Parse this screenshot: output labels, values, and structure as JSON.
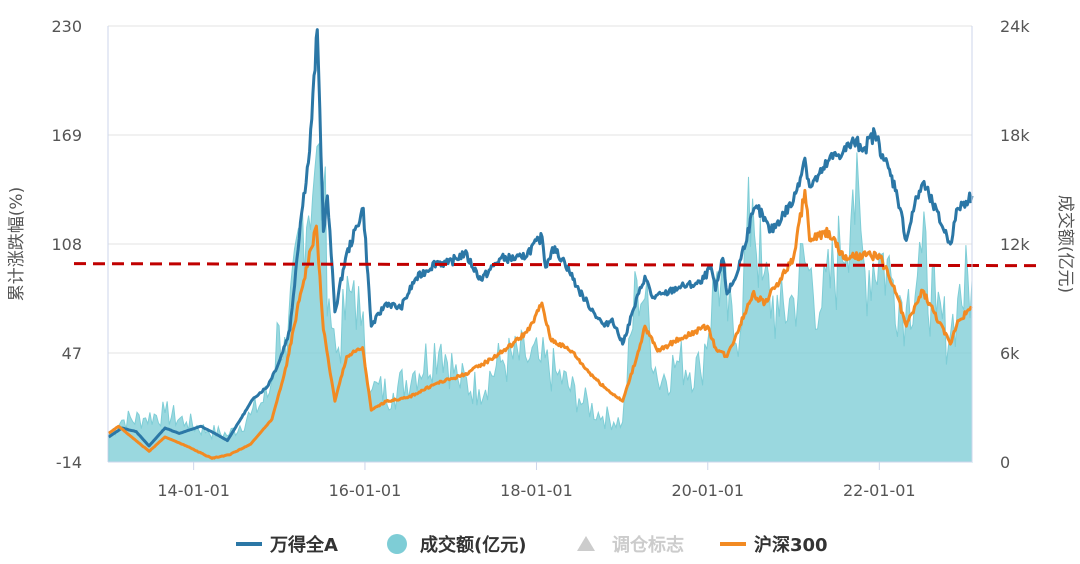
{
  "chart_data": {
    "type": "line",
    "title": "",
    "y_left_label": "累计涨跌幅(%)",
    "y_right_label": "成交额(亿元)",
    "y_left_ticks": [
      "230",
      "169",
      "108",
      "47",
      "-14"
    ],
    "y_right_ticks": [
      "24k",
      "18k",
      "12k",
      "6k",
      "0"
    ],
    "x_ticks": [
      "14-01-01",
      "16-01-01",
      "18-01-01",
      "20-01-01",
      "22-01-01"
    ],
    "y_left_range": [
      -14,
      230
    ],
    "y_right_range": [
      0,
      24000
    ],
    "x_range": [
      "2013-01-01",
      "2023-01-31"
    ],
    "grid": "horizontal",
    "legend_position": "bottom",
    "reference_line": {
      "value": 97,
      "axis": "left",
      "style": "dashed",
      "color": "#c00000"
    },
    "legend": [
      {
        "label": "万得全A",
        "marker": "line",
        "color": "#2b77a6"
      },
      {
        "label": "成交额(亿元)",
        "marker": "circle",
        "color": "#7ecdd6"
      },
      {
        "label": "调仓标志",
        "marker": "triangle",
        "color": "#cccccc"
      },
      {
        "label": "沪深300",
        "marker": "line",
        "color": "#f28a22"
      }
    ],
    "series": [
      {
        "name": "万得全A",
        "axis": "left",
        "color": "#2b77a6",
        "points": [
          [
            "2013-01-04",
            0
          ],
          [
            "2013-03-01",
            5
          ],
          [
            "2013-05-01",
            3
          ],
          [
            "2013-06-25",
            -5
          ],
          [
            "2013-09-01",
            5
          ],
          [
            "2013-11-01",
            2
          ],
          [
            "2014-02-01",
            6
          ],
          [
            "2014-04-01",
            2
          ],
          [
            "2014-05-25",
            -2
          ],
          [
            "2014-07-20",
            10
          ],
          [
            "2014-09-15",
            22
          ],
          [
            "2014-11-10",
            28
          ],
          [
            "2014-12-31",
            42
          ],
          [
            "2015-02-15",
            60
          ],
          [
            "2015-04-01",
            120
          ],
          [
            "2015-05-10",
            160
          ],
          [
            "2015-06-12",
            228
          ],
          [
            "2015-07-08",
            115
          ],
          [
            "2015-07-25",
            135
          ],
          [
            "2015-08-26",
            70
          ],
          [
            "2015-10-10",
            100
          ],
          [
            "2015-12-25",
            128
          ],
          [
            "2016-01-28",
            62
          ],
          [
            "2016-04-01",
            75
          ],
          [
            "2016-06-01",
            72
          ],
          [
            "2016-08-01",
            88
          ],
          [
            "2016-11-01",
            98
          ],
          [
            "2016-12-20",
            97
          ],
          [
            "2017-03-01",
            103
          ],
          [
            "2017-05-10",
            88
          ],
          [
            "2017-08-01",
            100
          ],
          [
            "2017-11-01",
            100
          ],
          [
            "2018-01-25",
            112
          ],
          [
            "2018-02-09",
            95
          ],
          [
            "2018-03-10",
            106
          ],
          [
            "2018-05-01",
            98
          ],
          [
            "2018-07-01",
            82
          ],
          [
            "2018-09-01",
            70
          ],
          [
            "2018-10-18",
            62
          ],
          [
            "2018-11-20",
            66
          ],
          [
            "2019-01-03",
            52
          ],
          [
            "2019-02-20",
            72
          ],
          [
            "2019-04-08",
            90
          ],
          [
            "2019-05-10",
            78
          ],
          [
            "2019-07-01",
            80
          ],
          [
            "2019-09-01",
            84
          ],
          [
            "2019-12-01",
            86
          ],
          [
            "2020-01-15",
            95
          ],
          [
            "2020-02-03",
            82
          ],
          [
            "2020-03-05",
            100
          ],
          [
            "2020-03-23",
            80
          ],
          [
            "2020-05-01",
            90
          ],
          [
            "2020-07-10",
            125
          ],
          [
            "2020-08-01",
            128
          ],
          [
            "2020-09-25",
            115
          ],
          [
            "2020-12-31",
            132
          ],
          [
            "2021-02-18",
            156
          ],
          [
            "2021-03-10",
            140
          ],
          [
            "2021-05-01",
            148
          ],
          [
            "2021-06-01",
            155
          ],
          [
            "2021-08-01",
            160
          ],
          [
            "2021-09-15",
            165
          ],
          [
            "2021-11-01",
            162
          ],
          [
            "2021-12-13",
            170
          ],
          [
            "2022-01-15",
            158
          ],
          [
            "2022-03-15",
            138
          ],
          [
            "2022-04-26",
            110
          ],
          [
            "2022-06-01",
            130
          ],
          [
            "2022-07-05",
            142
          ],
          [
            "2022-08-01",
            135
          ],
          [
            "2022-10-31",
            108
          ],
          [
            "2022-12-01",
            128
          ],
          [
            "2023-01-31",
            135
          ]
        ]
      },
      {
        "name": "沪深300",
        "axis": "left",
        "color": "#f28a22",
        "points": [
          [
            "2013-01-04",
            2
          ],
          [
            "2013-02-15",
            6
          ],
          [
            "2013-06-25",
            -8
          ],
          [
            "2013-09-01",
            0
          ],
          [
            "2013-12-01",
            -5
          ],
          [
            "2014-03-20",
            -12
          ],
          [
            "2014-06-01",
            -10
          ],
          [
            "2014-09-01",
            -4
          ],
          [
            "2014-12-01",
            10
          ],
          [
            "2015-02-01",
            40
          ],
          [
            "2015-04-01",
            80
          ],
          [
            "2015-06-08",
            118
          ],
          [
            "2015-07-08",
            60
          ],
          [
            "2015-08-26",
            20
          ],
          [
            "2015-10-15",
            45
          ],
          [
            "2015-12-22",
            50
          ],
          [
            "2016-01-28",
            15
          ],
          [
            "2016-04-01",
            20
          ],
          [
            "2016-07-01",
            22
          ],
          [
            "2016-11-01",
            30
          ],
          [
            "2017-03-01",
            35
          ],
          [
            "2017-06-01",
            42
          ],
          [
            "2017-09-01",
            50
          ],
          [
            "2017-12-01",
            60
          ],
          [
            "2018-01-24",
            75
          ],
          [
            "2018-03-01",
            55
          ],
          [
            "2018-06-01",
            48
          ],
          [
            "2018-08-01",
            38
          ],
          [
            "2018-10-15",
            28
          ],
          [
            "2019-01-03",
            20
          ],
          [
            "2019-03-05",
            45
          ],
          [
            "2019-04-08",
            62
          ],
          [
            "2019-06-01",
            48
          ],
          [
            "2019-09-01",
            55
          ],
          [
            "2019-12-31",
            62
          ],
          [
            "2020-02-03",
            50
          ],
          [
            "2020-03-23",
            45
          ],
          [
            "2020-07-10",
            80
          ],
          [
            "2020-09-01",
            75
          ],
          [
            "2020-12-31",
            100
          ],
          [
            "2021-02-18",
            138
          ],
          [
            "2021-03-10",
            110
          ],
          [
            "2021-06-01",
            115
          ],
          [
            "2021-08-01",
            100
          ],
          [
            "2021-12-31",
            102
          ],
          [
            "2022-03-15",
            80
          ],
          [
            "2022-04-26",
            62
          ],
          [
            "2022-07-05",
            82
          ],
          [
            "2022-10-31",
            52
          ],
          [
            "2022-12-01",
            65
          ],
          [
            "2023-01-31",
            72
          ]
        ]
      },
      {
        "name": "成交额(亿元)",
        "axis": "right",
        "type": "area",
        "color": "#7ecdd6",
        "points": [
          [
            "2013-01-04",
            1500
          ],
          [
            "2013-03-01",
            2300
          ],
          [
            "2013-06-01",
            2400
          ],
          [
            "2013-09-01",
            2700
          ],
          [
            "2013-12-01",
            2200
          ],
          [
            "2014-03-01",
            1700
          ],
          [
            "2014-06-01",
            1500
          ],
          [
            "2014-09-01",
            2600
          ],
          [
            "2014-11-20",
            3800
          ],
          [
            "2014-12-31",
            7500
          ],
          [
            "2015-02-01",
            5500
          ],
          [
            "2015-04-01",
            13000
          ],
          [
            "2015-06-01",
            16000
          ],
          [
            "2015-07-08",
            15000
          ],
          [
            "2015-08-01",
            9000
          ],
          [
            "2015-09-01",
            6000
          ],
          [
            "2015-11-15",
            10000
          ],
          [
            "2015-12-15",
            7500
          ],
          [
            "2016-02-01",
            4000
          ],
          [
            "2016-05-01",
            3800
          ],
          [
            "2016-08-01",
            5000
          ],
          [
            "2016-11-20",
            6500
          ],
          [
            "2017-02-01",
            4500
          ],
          [
            "2017-05-01",
            4000
          ],
          [
            "2017-08-01",
            5500
          ],
          [
            "2017-11-15",
            5800
          ],
          [
            "2018-01-20",
            5500
          ],
          [
            "2018-04-01",
            4800
          ],
          [
            "2018-07-01",
            3500
          ],
          [
            "2018-10-10",
            2500
          ],
          [
            "2019-01-03",
            2200
          ],
          [
            "2019-03-05",
            10000
          ],
          [
            "2019-04-08",
            9000
          ],
          [
            "2019-06-01",
            4500
          ],
          [
            "2019-09-01",
            5500
          ],
          [
            "2019-12-01",
            5000
          ],
          [
            "2020-02-10",
            10500
          ],
          [
            "2020-05-01",
            6500
          ],
          [
            "2020-07-10",
            14500
          ],
          [
            "2020-08-20",
            10000
          ],
          [
            "2020-11-01",
            8000
          ],
          [
            "2021-01-01",
            9000
          ],
          [
            "2021-02-18",
            11000
          ],
          [
            "2021-05-01",
            8500
          ],
          [
            "2021-07-20",
            11500
          ],
          [
            "2021-09-10",
            15000
          ],
          [
            "2021-11-01",
            10500
          ],
          [
            "2022-01-01",
            11500
          ],
          [
            "2022-03-01",
            10000
          ],
          [
            "2022-04-26",
            8500
          ],
          [
            "2022-07-01",
            11500
          ],
          [
            "2022-09-01",
            8000
          ],
          [
            "2022-10-31",
            7000
          ],
          [
            "2022-12-01",
            9000
          ],
          [
            "2023-01-31",
            10000
          ]
        ]
      }
    ]
  }
}
